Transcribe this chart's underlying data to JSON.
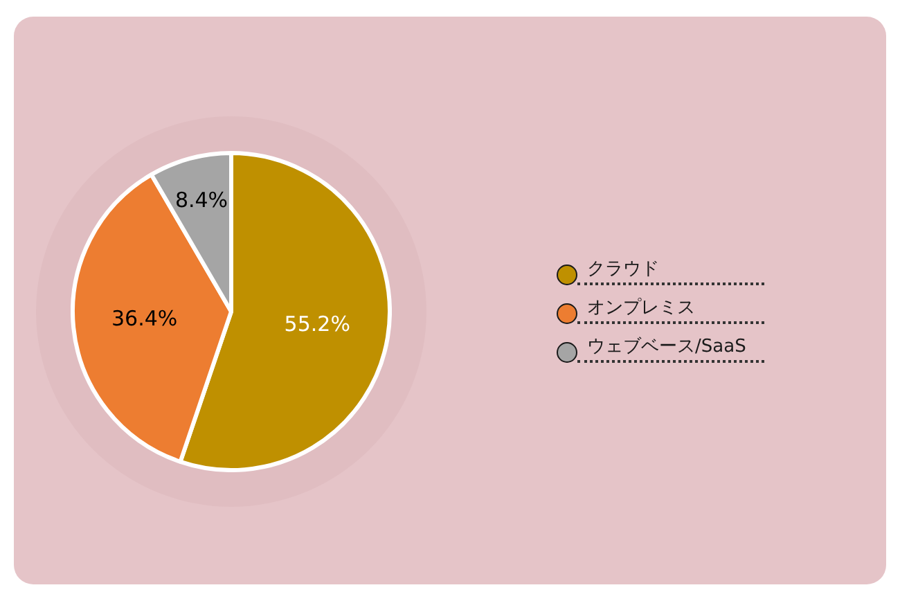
{
  "chart_data": {
    "type": "pie",
    "categories": [
      "クラウド",
      "オンプレミス",
      "ウェブベース/SaaS"
    ],
    "values": [
      55.2,
      36.4,
      8.4
    ],
    "colors": [
      "#bf9000",
      "#ed7d31",
      "#a5a5a5"
    ],
    "value_labels": [
      "55.2%",
      "36.4%",
      "8.4%"
    ],
    "legend": "right"
  }
}
